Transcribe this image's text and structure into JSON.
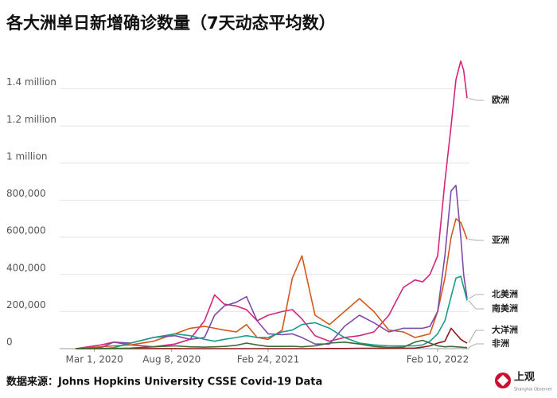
{
  "chart_data": {
    "type": "line",
    "title": "各大洲单日新增确诊数量（7天动态平均数）",
    "source": "数据来源：Johns Hopkins University CSSE Covid-19 Data",
    "logo": "上观",
    "logo_subtitle": "Shanghai Observer",
    "x": [
      "2020-01-22",
      "2020-03-15",
      "2020-04-10",
      "2020-05-15",
      "2020-07-01",
      "2020-08-15",
      "2020-09-15",
      "2020-10-15",
      "2020-11-05",
      "2020-11-25",
      "2020-12-20",
      "2021-01-10",
      "2021-02-01",
      "2021-02-24",
      "2021-03-25",
      "2021-04-15",
      "2021-05-05",
      "2021-06-01",
      "2021-07-01",
      "2021-08-01",
      "2021-09-01",
      "2021-10-01",
      "2021-11-01",
      "2021-12-01",
      "2021-12-25",
      "2022-01-10",
      "2022-01-25",
      "2022-02-10",
      "2022-02-25",
      "2022-03-10",
      "2022-03-20",
      "2022-03-30",
      "2022-04-05",
      "2022-04-12"
    ],
    "xlim": [
      "2019-12-20",
      "2022-04-17"
    ],
    "xticks": [
      {
        "value": "2020-03-01",
        "label": "Mar 1, 2020"
      },
      {
        "value": "2020-08-08",
        "label": "Aug 8, 2020"
      },
      {
        "value": "2021-02-24",
        "label": "Feb 24, 2021"
      },
      {
        "value": "2022-02-10",
        "label": "Feb 10, 2022"
      }
    ],
    "ylim": [
      0,
      1600000
    ],
    "yticks": [
      0,
      {
        "value": 200000,
        "label": "200,000"
      },
      {
        "value": 400000,
        "label": "400,000"
      },
      {
        "value": 600000,
        "label": "600,000"
      },
      {
        "value": 800000,
        "label": "800,000"
      },
      {
        "value": 1000000,
        "label": "1 million"
      },
      {
        "value": 1200000,
        "label": "1.2 million"
      },
      {
        "value": 1400000,
        "label": "1.4 million"
      }
    ],
    "grid": true,
    "series": [
      {
        "name": "欧洲",
        "color": "#d6247a",
        "values": [
          0,
          20000,
          35000,
          20000,
          10000,
          25000,
          50000,
          150000,
          290000,
          240000,
          230000,
          210000,
          150000,
          180000,
          200000,
          210000,
          160000,
          70000,
          40000,
          60000,
          70000,
          90000,
          180000,
          330000,
          370000,
          360000,
          400000,
          500000,
          900000,
          1200000,
          1450000,
          1550000,
          1500000,
          1350000
        ]
      },
      {
        "name": "亚洲",
        "color": "#d4581a",
        "values": [
          0,
          10000,
          15000,
          20000,
          40000,
          80000,
          110000,
          120000,
          110000,
          100000,
          90000,
          130000,
          60000,
          50000,
          100000,
          380000,
          500000,
          180000,
          130000,
          200000,
          270000,
          200000,
          100000,
          90000,
          60000,
          70000,
          80000,
          200000,
          380000,
          600000,
          700000,
          680000,
          640000,
          590000
        ]
      },
      {
        "name": "北美洲",
        "color": "#7f4aa8",
        "values": [
          0,
          5000,
          35000,
          30000,
          60000,
          70000,
          50000,
          60000,
          180000,
          230000,
          250000,
          280000,
          150000,
          80000,
          75000,
          80000,
          60000,
          25000,
          25000,
          120000,
          180000,
          140000,
          90000,
          110000,
          110000,
          110000,
          120000,
          200000,
          500000,
          850000,
          880000,
          600000,
          400000,
          270000
        ]
      },
      {
        "name": "南美洲",
        "color": "#1a9a8a",
        "values": [
          0,
          0,
          5000,
          30000,
          60000,
          80000,
          70000,
          50000,
          40000,
          50000,
          60000,
          70000,
          60000,
          60000,
          90000,
          100000,
          130000,
          140000,
          110000,
          60000,
          30000,
          20000,
          15000,
          15000,
          15000,
          20000,
          40000,
          80000,
          150000,
          280000,
          380000,
          390000,
          330000,
          260000
        ]
      },
      {
        "name": "大洋洲",
        "color": "#8b1a1a",
        "values": [
          0,
          0,
          500,
          0,
          500,
          500,
          100,
          0,
          0,
          0,
          0,
          0,
          0,
          0,
          0,
          0,
          0,
          0,
          1000,
          1000,
          2000,
          2000,
          1500,
          2000,
          3000,
          8000,
          15000,
          30000,
          40000,
          110000,
          80000,
          50000,
          40000,
          30000
        ]
      },
      {
        "name": "非洲",
        "color": "#3d6b35",
        "values": [
          0,
          0,
          1000,
          3000,
          10000,
          15000,
          10000,
          8000,
          10000,
          12000,
          18000,
          30000,
          20000,
          12000,
          12000,
          13000,
          10000,
          15000,
          30000,
          35000,
          25000,
          12000,
          6000,
          8000,
          35000,
          45000,
          30000,
          15000,
          10000,
          12000,
          10000,
          8000,
          7000,
          6000
        ]
      }
    ]
  }
}
